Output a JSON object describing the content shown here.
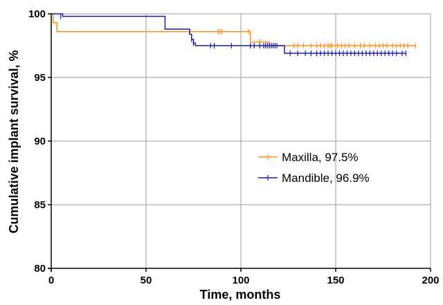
{
  "chart_data": {
    "type": "line",
    "xlabel": "Time, months",
    "ylabel": "Cumulative implant survival, %",
    "xlim": [
      0,
      200
    ],
    "ylim": [
      80,
      100
    ],
    "xticks": [
      0,
      50,
      100,
      150,
      200
    ],
    "yticks": [
      80,
      85,
      90,
      95,
      100
    ],
    "grid": true,
    "legend_position": "center-right",
    "series": [
      {
        "name": "Maxilla, 97.5%",
        "color": "#ff8c1a",
        "step": true,
        "x": [
          0,
          1,
          2,
          3,
          105,
          115,
          115,
          192
        ],
        "y": [
          100,
          99.3,
          99.3,
          98.6,
          97.8,
          97.8,
          97.5,
          97.5
        ],
        "censored": [
          {
            "x": 88,
            "y": 98.6
          },
          {
            "x": 89,
            "y": 98.6
          },
          {
            "x": 90,
            "y": 98.6
          },
          {
            "x": 104,
            "y": 98.6
          },
          {
            "x": 110,
            "y": 97.8
          },
          {
            "x": 128,
            "y": 97.5
          },
          {
            "x": 130,
            "y": 97.5
          },
          {
            "x": 133,
            "y": 97.5
          },
          {
            "x": 137,
            "y": 97.5
          },
          {
            "x": 140,
            "y": 97.5
          },
          {
            "x": 142,
            "y": 97.5
          },
          {
            "x": 144,
            "y": 97.5
          },
          {
            "x": 146,
            "y": 97.5
          },
          {
            "x": 147,
            "y": 97.5
          },
          {
            "x": 148,
            "y": 97.5
          },
          {
            "x": 150,
            "y": 97.5
          },
          {
            "x": 151,
            "y": 97.5
          },
          {
            "x": 153,
            "y": 97.5
          },
          {
            "x": 155,
            "y": 97.5
          },
          {
            "x": 157,
            "y": 97.5
          },
          {
            "x": 160,
            "y": 97.5
          },
          {
            "x": 163,
            "y": 97.5
          },
          {
            "x": 165,
            "y": 97.5
          },
          {
            "x": 168,
            "y": 97.5
          },
          {
            "x": 171,
            "y": 97.5
          },
          {
            "x": 173,
            "y": 97.5
          },
          {
            "x": 175,
            "y": 97.5
          },
          {
            "x": 177,
            "y": 97.5
          },
          {
            "x": 180,
            "y": 97.5
          },
          {
            "x": 182,
            "y": 97.5
          },
          {
            "x": 184,
            "y": 97.5
          },
          {
            "x": 186,
            "y": 97.5
          },
          {
            "x": 188,
            "y": 97.5
          },
          {
            "x": 192,
            "y": 97.5
          }
        ]
      },
      {
        "name": "Mandible, 96.9%",
        "color": "#1a1aa6",
        "step": true,
        "x": [
          0,
          6,
          60,
          73,
          74,
          75,
          76,
          123,
          187
        ],
        "y": [
          100,
          99.8,
          98.8,
          98.4,
          98.0,
          97.7,
          97.5,
          96.9,
          96.9
        ],
        "censored": [
          {
            "x": 5,
            "y": 99.8
          },
          {
            "x": 74,
            "y": 98.0
          },
          {
            "x": 75,
            "y": 97.7
          },
          {
            "x": 84,
            "y": 97.5
          },
          {
            "x": 86,
            "y": 97.5
          },
          {
            "x": 95,
            "y": 97.5
          },
          {
            "x": 105,
            "y": 97.5
          },
          {
            "x": 107,
            "y": 97.5
          },
          {
            "x": 110,
            "y": 97.5
          },
          {
            "x": 112,
            "y": 97.5
          },
          {
            "x": 113,
            "y": 97.5
          },
          {
            "x": 114,
            "y": 97.5
          },
          {
            "x": 115,
            "y": 97.5
          },
          {
            "x": 116,
            "y": 97.5
          },
          {
            "x": 117,
            "y": 97.5
          },
          {
            "x": 118,
            "y": 97.5
          },
          {
            "x": 119,
            "y": 97.5
          },
          {
            "x": 126,
            "y": 96.9
          },
          {
            "x": 130,
            "y": 96.9
          },
          {
            "x": 134,
            "y": 96.9
          },
          {
            "x": 137,
            "y": 96.9
          },
          {
            "x": 140,
            "y": 96.9
          },
          {
            "x": 142,
            "y": 96.9
          },
          {
            "x": 144,
            "y": 96.9
          },
          {
            "x": 146,
            "y": 96.9
          },
          {
            "x": 148,
            "y": 96.9
          },
          {
            "x": 150,
            "y": 96.9
          },
          {
            "x": 152,
            "y": 96.9
          },
          {
            "x": 154,
            "y": 96.9
          },
          {
            "x": 156,
            "y": 96.9
          },
          {
            "x": 158,
            "y": 96.9
          },
          {
            "x": 160,
            "y": 96.9
          },
          {
            "x": 162,
            "y": 96.9
          },
          {
            "x": 164,
            "y": 96.9
          },
          {
            "x": 166,
            "y": 96.9
          },
          {
            "x": 168,
            "y": 96.9
          },
          {
            "x": 170,
            "y": 96.9
          },
          {
            "x": 172,
            "y": 96.9
          },
          {
            "x": 174,
            "y": 96.9
          },
          {
            "x": 176,
            "y": 96.9
          },
          {
            "x": 178,
            "y": 96.9
          },
          {
            "x": 180,
            "y": 96.9
          },
          {
            "x": 182,
            "y": 96.9
          },
          {
            "x": 185,
            "y": 96.9
          },
          {
            "x": 187,
            "y": 96.9
          }
        ]
      }
    ]
  }
}
